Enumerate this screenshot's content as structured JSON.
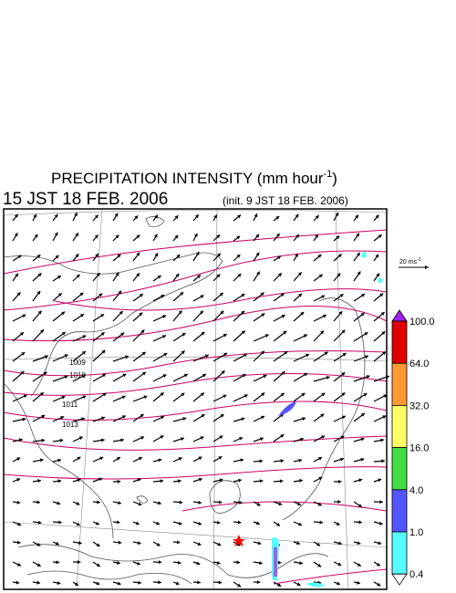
{
  "header": {
    "title": "PRECIPITATION INTENSITY (mm hour",
    "title_exponent": "-1",
    "title_close": ")",
    "valid_time": "15 JST 18 FEB. 2006",
    "init_time": "(init. 9 JST 18 FEB. 2006)"
  },
  "wind_scale": {
    "label": "20 ms",
    "exponent": "-1"
  },
  "isobar_labels": [
    "1009",
    "1010",
    "1011",
    "1013"
  ],
  "colorbar": {
    "labels": [
      "100.0",
      "64.0",
      "32.0",
      "16.0",
      "4.0",
      "1.0",
      "0.4"
    ],
    "colors": [
      "#a020f0",
      "#e00000",
      "#ff9933",
      "#ffff66",
      "#44dd44",
      "#5555ff",
      "#55ffff",
      "#ffffff"
    ]
  }
}
